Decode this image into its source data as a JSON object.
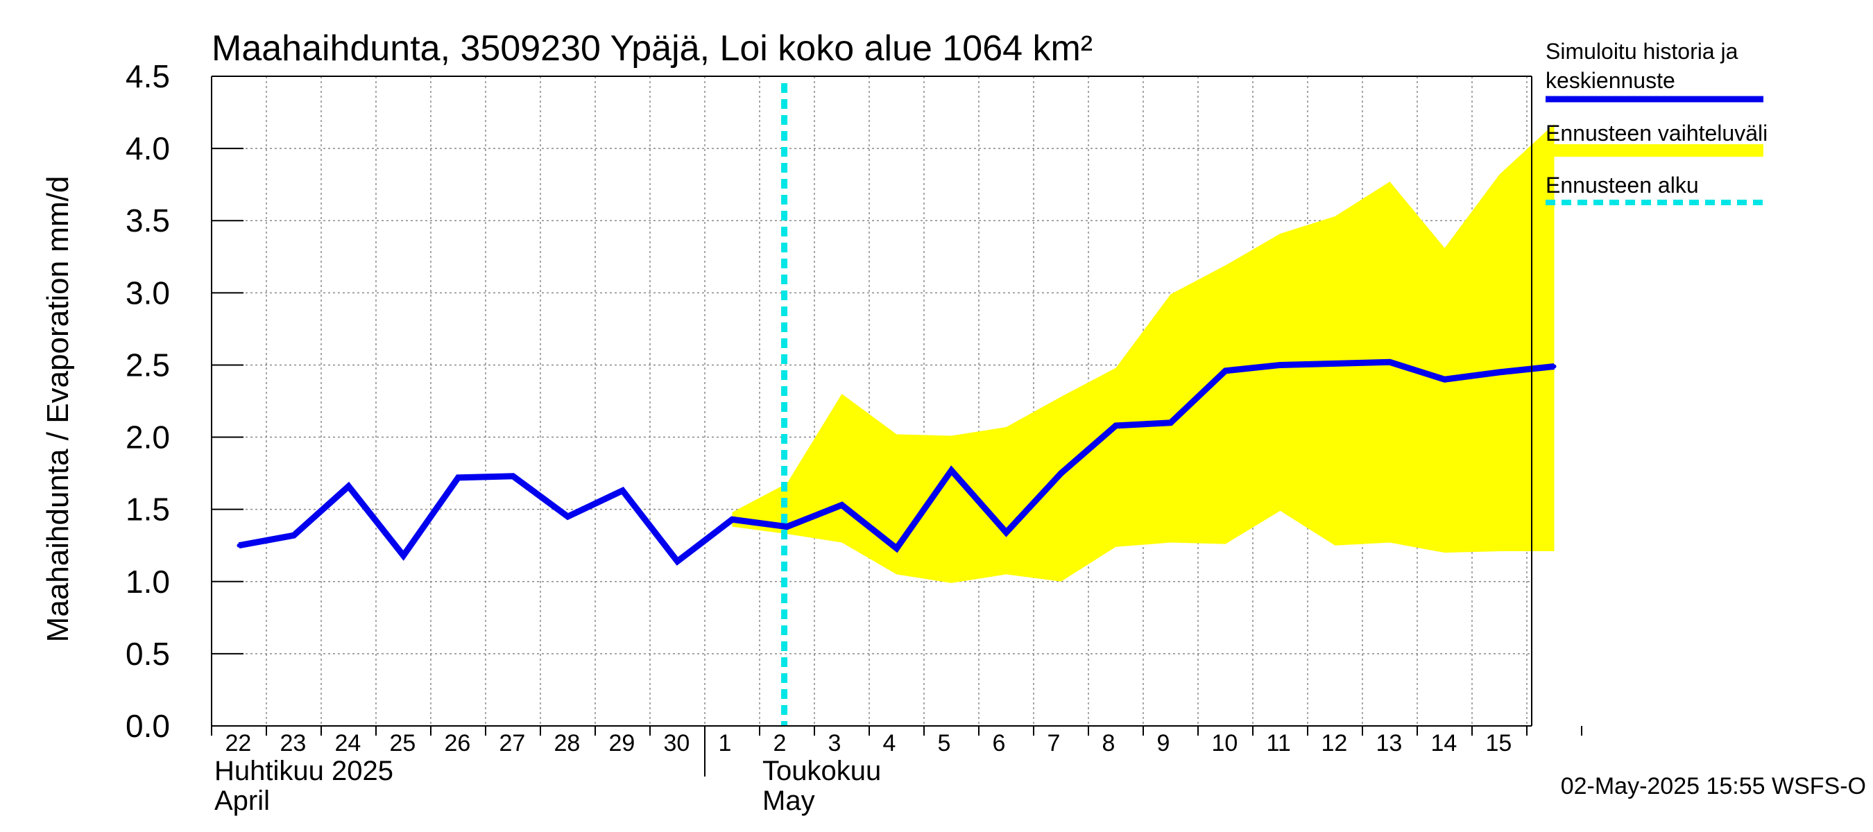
{
  "chart_data": {
    "type": "area",
    "title": "Maahaihdunta, 3509230 Ypäjä, Loi koko alue 1064 km²",
    "ylabel": "Maahaihdunta / Evaporation   mm/d",
    "ylim": [
      0,
      4.5
    ],
    "yticks": [
      "0.0",
      "0.5",
      "1.0",
      "1.5",
      "2.0",
      "2.5",
      "3.0",
      "3.5",
      "4.0",
      "4.5"
    ],
    "x_start_day": -9,
    "x_end_day": 15,
    "x_day_labels": [
      {
        "day": -9,
        "label": "22"
      },
      {
        "day": -8,
        "label": "23"
      },
      {
        "day": -7,
        "label": "24"
      },
      {
        "day": -6,
        "label": "25"
      },
      {
        "day": -5,
        "label": "26"
      },
      {
        "day": -4,
        "label": "27"
      },
      {
        "day": -3,
        "label": "28"
      },
      {
        "day": -2,
        "label": "29"
      },
      {
        "day": -1,
        "label": "30"
      },
      {
        "day": 0,
        "label": "1"
      },
      {
        "day": 1,
        "label": "2"
      },
      {
        "day": 2,
        "label": "3"
      },
      {
        "day": 3,
        "label": "4"
      },
      {
        "day": 4,
        "label": "5"
      },
      {
        "day": 5,
        "label": "6"
      },
      {
        "day": 6,
        "label": "7"
      },
      {
        "day": 7,
        "label": "8"
      },
      {
        "day": 8,
        "label": "9"
      },
      {
        "day": 9,
        "label": "10"
      },
      {
        "day": 10,
        "label": "11"
      },
      {
        "day": 11,
        "label": "12"
      },
      {
        "day": 12,
        "label": "13"
      },
      {
        "day": 13,
        "label": "14"
      },
      {
        "day": 14,
        "label": "15"
      }
    ],
    "month_labels": [
      {
        "day": -9,
        "line1": "Huhtikuu  2025",
        "line2": "April"
      },
      {
        "day": 1,
        "line1": "Toukokuu",
        "line2": "May"
      }
    ],
    "month_boundary_day": 0,
    "forecast_start_day": 0.95,
    "series": [
      {
        "name": "Simuloitu historia ja keskiennuste",
        "color": "#0000ee",
        "x": [
          -9,
          -8,
          -7,
          -6,
          -5,
          -4,
          -3,
          -2,
          -1,
          0,
          1,
          2,
          3,
          4,
          5,
          6,
          7,
          8,
          9,
          10,
          11,
          12,
          13,
          14,
          15
        ],
        "values": [
          1.25,
          1.32,
          1.66,
          1.18,
          1.72,
          1.73,
          1.45,
          1.63,
          1.14,
          1.43,
          1.38,
          1.53,
          1.23,
          1.77,
          1.34,
          1.75,
          2.08,
          2.1,
          2.46,
          2.5,
          2.51,
          2.52,
          2.4,
          2.45,
          2.49
        ]
      }
    ],
    "band": {
      "name": "Ennusteen vaihteluväli",
      "color": "#ffff00",
      "x": [
        0,
        1,
        2,
        3,
        4,
        5,
        6,
        7,
        8,
        9,
        10,
        11,
        12,
        13,
        14,
        15
      ],
      "upper": [
        1.48,
        1.68,
        2.3,
        2.02,
        2.01,
        2.07,
        2.28,
        2.48,
        2.99,
        3.19,
        3.41,
        3.53,
        3.77,
        3.31,
        3.82,
        4.17
      ],
      "lower": [
        1.38,
        1.33,
        1.27,
        1.05,
        0.99,
        1.05,
        1.0,
        1.24,
        1.27,
        1.26,
        1.49,
        1.25,
        1.27,
        1.2,
        1.21,
        1.21
      ]
    },
    "forecast_line": {
      "name": "Ennusteen alku",
      "color": "#00e5e5"
    },
    "legend": [
      {
        "label_lines": [
          "Simuloitu historia ja",
          "keskiennuste"
        ],
        "style": "line",
        "color": "#0000ee"
      },
      {
        "label_lines": [
          "Ennusteen vaihteluväli"
        ],
        "style": "band",
        "color": "#ffff00"
      },
      {
        "label_lines": [
          "Ennusteen alku"
        ],
        "style": "dashed",
        "color": "#00e5e5"
      }
    ],
    "legend_position": "right",
    "grid": true,
    "footer": "02-May-2025 15:55 WSFS-O"
  }
}
